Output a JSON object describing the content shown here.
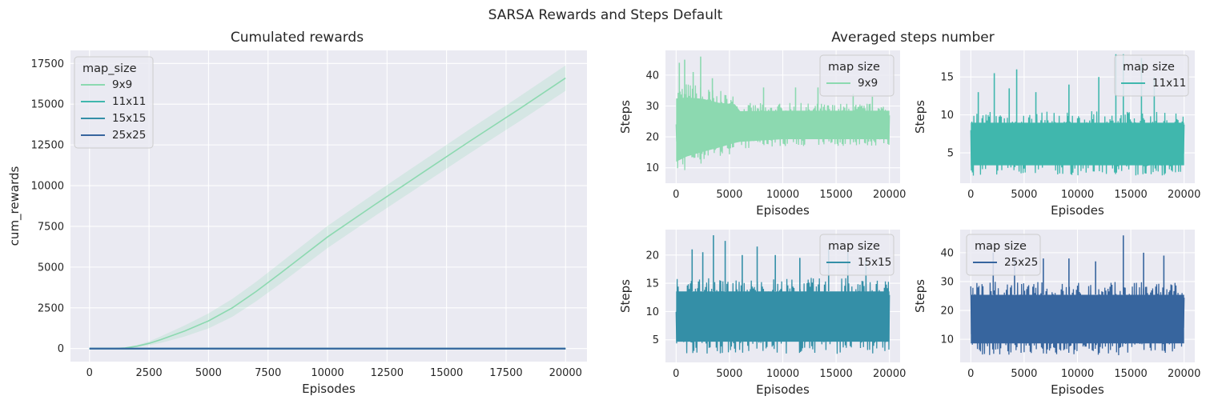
{
  "suptitle": "SARSA Rewards and Steps Default",
  "colors": {
    "background": "#eaeaf2",
    "grid": "#ffffff",
    "9x9": "#8cd9b0",
    "11x11": "#40b7ad",
    "15x15": "#348fa7",
    "25x25": "#37659e"
  },
  "chart_data": [
    {
      "type": "line",
      "title": "Cumulated rewards",
      "xlabel": "Episodes",
      "ylabel": "cum_rewards",
      "xlim": [
        -800,
        20900
      ],
      "ylim": [
        -800,
        18300
      ],
      "xticks": [
        0,
        2500,
        5000,
        7500,
        10000,
        12500,
        15000,
        17500,
        20000
      ],
      "yticks": [
        0,
        2500,
        5000,
        7500,
        10000,
        12500,
        15000,
        17500
      ],
      "grid": true,
      "legend": {
        "title": "map_size",
        "position": "top-left",
        "entries": [
          "9x9",
          "11x11",
          "15x15",
          "25x25"
        ]
      },
      "series": [
        {
          "name": "9x9",
          "x": [
            0,
            1000,
            1500,
            2000,
            2500,
            3000,
            4000,
            5000,
            6000,
            7000,
            8000,
            10000,
            12000,
            14000,
            16000,
            18000,
            20000
          ],
          "values": [
            0,
            0,
            40,
            150,
            320,
            550,
            1080,
            1700,
            2500,
            3500,
            4600,
            6850,
            8850,
            10800,
            12750,
            14650,
            16600
          ],
          "band_width": [
            0,
            0,
            20,
            60,
            120,
            200,
            340,
            460,
            550,
            600,
            640,
            680,
            700,
            720,
            740,
            760,
            780
          ]
        },
        {
          "name": "11x11",
          "x": [
            0,
            20000
          ],
          "values": [
            0,
            0
          ]
        },
        {
          "name": "15x15",
          "x": [
            0,
            20000
          ],
          "values": [
            0,
            0
          ]
        },
        {
          "name": "25x25",
          "x": [
            0,
            20000
          ],
          "values": [
            0,
            0
          ]
        }
      ]
    },
    {
      "type": "line",
      "title": "Averaged steps number",
      "subplots": [
        {
          "name": "9x9",
          "xlabel": "Episodes",
          "ylabel": "Steps",
          "xlim": [
            -1000,
            21000
          ],
          "ylim": [
            5,
            48
          ],
          "xticks": [
            0,
            5000,
            10000,
            15000,
            20000
          ],
          "yticks": [
            10,
            20,
            30,
            40
          ],
          "legend": {
            "title": "map size",
            "position": "top-right",
            "entries": [
              "9x9"
            ]
          },
          "envelope_x": [
            0,
            1000,
            2500,
            4000,
            5500,
            6000,
            10000,
            15000,
            20000
          ],
          "envelope_low": [
            7,
            9,
            11,
            13,
            15,
            16,
            17,
            17,
            17
          ],
          "envelope_high": [
            38,
            38,
            37,
            35,
            34,
            31,
            31,
            31,
            31
          ],
          "spikes": [
            [
              300,
              44
            ],
            [
              800,
              45
            ],
            [
              1600,
              41
            ],
            [
              2300,
              46
            ],
            [
              3400,
              39
            ],
            [
              8200,
              36
            ],
            [
              11200,
              36
            ],
            [
              13300,
              36
            ],
            [
              16600,
              34
            ],
            [
              18400,
              33
            ]
          ]
        },
        {
          "name": "11x11",
          "xlabel": "Episodes",
          "ylabel": "Steps",
          "xlim": [
            -1000,
            21000
          ],
          "ylim": [
            1,
            18.5
          ],
          "xticks": [
            0,
            5000,
            10000,
            15000,
            20000
          ],
          "yticks": [
            5,
            10,
            15
          ],
          "legend": {
            "title": "map size",
            "position": "top-right",
            "entries": [
              "11x11"
            ]
          },
          "envelope_x": [
            0,
            20000
          ],
          "envelope_low": [
            2,
            2
          ],
          "envelope_high": [
            10.5,
            10.5
          ],
          "spikes": [
            [
              700,
              13
            ],
            [
              2200,
              15.5
            ],
            [
              3600,
              13.5
            ],
            [
              4300,
              16
            ],
            [
              6100,
              13
            ],
            [
              9200,
              14
            ],
            [
              12000,
              15
            ],
            [
              13600,
              18
            ],
            [
              14300,
              18
            ],
            [
              16000,
              17.5
            ],
            [
              17200,
              15
            ]
          ]
        },
        {
          "name": "15x15",
          "xlabel": "Episodes",
          "ylabel": "Steps",
          "xlim": [
            -1000,
            21000
          ],
          "ylim": [
            1,
            24.5
          ],
          "xticks": [
            0,
            5000,
            10000,
            15000,
            20000
          ],
          "yticks": [
            5,
            10,
            15,
            20
          ],
          "legend": {
            "title": "map size",
            "position": "top-right",
            "entries": [
              "15x15"
            ]
          },
          "envelope_x": [
            0,
            20000
          ],
          "envelope_low": [
            2.5,
            2.5
          ],
          "envelope_high": [
            16,
            16
          ],
          "spikes": [
            [
              1500,
              21
            ],
            [
              2500,
              20.5
            ],
            [
              3500,
              23.5
            ],
            [
              4600,
              22.5
            ],
            [
              6200,
              20
            ],
            [
              7600,
              21.5
            ],
            [
              9300,
              20
            ],
            [
              11600,
              19.5
            ],
            [
              14300,
              21
            ],
            [
              16100,
              20.5
            ],
            [
              17800,
              19
            ]
          ]
        },
        {
          "name": "25x25",
          "xlabel": "Episodes",
          "ylabel": "Steps",
          "xlim": [
            -1000,
            21000
          ],
          "ylim": [
            2,
            48
          ],
          "xticks": [
            0,
            5000,
            10000,
            15000,
            20000
          ],
          "yticks": [
            10,
            20,
            30,
            40
          ],
          "legend": {
            "title": "map size",
            "position": "top-left",
            "entries": [
              "25x25"
            ]
          },
          "envelope_x": [
            0,
            20000
          ],
          "envelope_low": [
            4.5,
            4.5
          ],
          "envelope_high": [
            30,
            30
          ],
          "spikes": [
            [
              2100,
              40
            ],
            [
              4100,
              38
            ],
            [
              6800,
              38
            ],
            [
              9200,
              38
            ],
            [
              11700,
              37
            ],
            [
              14300,
              46
            ],
            [
              16200,
              40
            ],
            [
              18100,
              39
            ]
          ]
        }
      ]
    }
  ]
}
